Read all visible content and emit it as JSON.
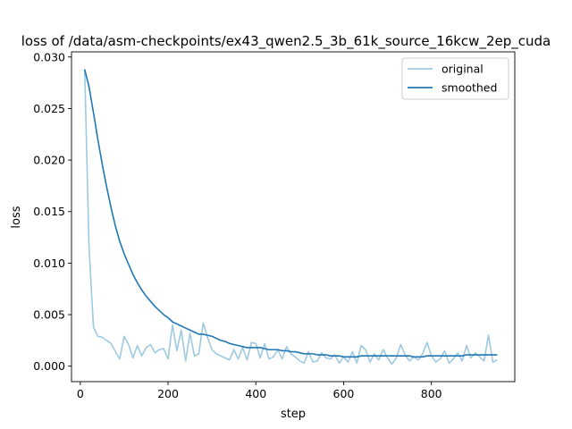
{
  "chart_data": {
    "type": "line",
    "title": "loss of /data/asm-checkpoints/ex43_qwen2.5_3b_61k_source_16kcw_2ep_cuda",
    "xlabel": "step",
    "ylabel": "loss",
    "xlim": [
      -20,
      990
    ],
    "ylim": [
      -0.0015,
      0.0305
    ],
    "xticks": [
      0,
      200,
      400,
      600,
      800
    ],
    "xtick_labels": [
      "0",
      "200",
      "400",
      "600",
      "800"
    ],
    "yticks": [
      0.0,
      0.005,
      0.01,
      0.015,
      0.02,
      0.025,
      0.03
    ],
    "ytick_labels": [
      "0.000",
      "0.005",
      "0.010",
      "0.015",
      "0.020",
      "0.025",
      "0.030"
    ],
    "grid": false,
    "legend_position": "top-right",
    "series": [
      {
        "name": "original",
        "color": "#9ecae1",
        "x": [
          10,
          20,
          30,
          40,
          50,
          60,
          70,
          80,
          90,
          100,
          110,
          120,
          130,
          140,
          150,
          160,
          170,
          180,
          190,
          200,
          210,
          220,
          230,
          240,
          250,
          260,
          270,
          280,
          290,
          300,
          310,
          320,
          330,
          340,
          350,
          360,
          370,
          380,
          390,
          400,
          410,
          420,
          430,
          440,
          450,
          460,
          470,
          480,
          490,
          500,
          510,
          520,
          530,
          540,
          550,
          560,
          570,
          580,
          590,
          600,
          610,
          620,
          630,
          640,
          650,
          660,
          670,
          680,
          690,
          700,
          710,
          720,
          730,
          740,
          750,
          760,
          770,
          780,
          790,
          800,
          810,
          820,
          830,
          840,
          850,
          860,
          870,
          880,
          890,
          900,
          910,
          920,
          930,
          940,
          950
        ],
        "y": [
          0.0288,
          0.0115,
          0.0038,
          0.0029,
          0.0028,
          0.0025,
          0.0022,
          0.0014,
          0.0007,
          0.0029,
          0.0021,
          0.0008,
          0.002,
          0.001,
          0.0018,
          0.0021,
          0.0013,
          0.0016,
          0.0017,
          0.0007,
          0.004,
          0.0015,
          0.0035,
          0.0005,
          0.0032,
          0.001,
          0.0012,
          0.0042,
          0.0028,
          0.0016,
          0.0012,
          0.001,
          0.0008,
          0.0006,
          0.0016,
          0.0007,
          0.0018,
          0.0006,
          0.0023,
          0.0022,
          0.0008,
          0.0022,
          0.0007,
          0.0009,
          0.0016,
          0.0007,
          0.0019,
          0.0012,
          0.0009,
          0.0005,
          0.0003,
          0.0014,
          0.0004,
          0.0005,
          0.0013,
          0.0008,
          0.0007,
          0.0011,
          0.0003,
          0.0009,
          0.0004,
          0.0014,
          0.0003,
          0.002,
          0.0016,
          0.0004,
          0.0012,
          0.0006,
          0.0016,
          0.0008,
          0.0002,
          0.0008,
          0.0021,
          0.0011,
          0.0005,
          0.0009,
          0.0006,
          0.0012,
          0.0023,
          0.001,
          0.0004,
          0.0007,
          0.0015,
          0.0003,
          0.0007,
          0.0013,
          0.0005,
          0.002,
          0.0008,
          0.0013,
          0.0009,
          0.0005,
          0.003,
          0.0004,
          0.0006
        ]
      },
      {
        "name": "smoothed",
        "color": "#1f77b4",
        "x": [
          10,
          20,
          30,
          40,
          50,
          60,
          70,
          80,
          90,
          100,
          110,
          120,
          130,
          140,
          150,
          160,
          170,
          180,
          190,
          200,
          210,
          220,
          230,
          240,
          250,
          260,
          270,
          280,
          290,
          300,
          310,
          320,
          330,
          340,
          350,
          360,
          370,
          380,
          390,
          400,
          410,
          420,
          430,
          440,
          450,
          460,
          470,
          480,
          490,
          500,
          510,
          520,
          530,
          540,
          550,
          560,
          570,
          580,
          590,
          600,
          610,
          620,
          630,
          640,
          650,
          660,
          670,
          680,
          690,
          700,
          710,
          720,
          730,
          740,
          750,
          760,
          770,
          780,
          790,
          800,
          810,
          820,
          830,
          840,
          850,
          860,
          870,
          880,
          890,
          900,
          910,
          920,
          930,
          940,
          950
        ],
        "y": [
          0.0288,
          0.0271,
          0.0246,
          0.022,
          0.0196,
          0.0174,
          0.0154,
          0.0136,
          0.0121,
          0.0109,
          0.0099,
          0.0089,
          0.0081,
          0.0074,
          0.0068,
          0.0063,
          0.0058,
          0.0054,
          0.005,
          0.0047,
          0.0043,
          0.0041,
          0.0039,
          0.0037,
          0.0035,
          0.0033,
          0.0031,
          0.0031,
          0.003,
          0.0029,
          0.0027,
          0.0025,
          0.0024,
          0.0022,
          0.0021,
          0.002,
          0.0019,
          0.0018,
          0.0018,
          0.0018,
          0.0018,
          0.0017,
          0.0016,
          0.0016,
          0.0016,
          0.0015,
          0.0015,
          0.0014,
          0.0014,
          0.0013,
          0.0012,
          0.0012,
          0.0012,
          0.0011,
          0.0011,
          0.0011,
          0.001,
          0.001,
          0.001,
          0.0009,
          0.0009,
          0.0009,
          0.0009,
          0.001,
          0.001,
          0.001,
          0.001,
          0.001,
          0.001,
          0.001,
          0.001,
          0.001,
          0.001,
          0.001,
          0.001,
          0.0009,
          0.0009,
          0.0009,
          0.001,
          0.001,
          0.001,
          0.001,
          0.001,
          0.001,
          0.001,
          0.001,
          0.001,
          0.0011,
          0.0011,
          0.0011,
          0.0011,
          0.0011,
          0.0011,
          0.0011,
          0.0011
        ]
      }
    ]
  }
}
